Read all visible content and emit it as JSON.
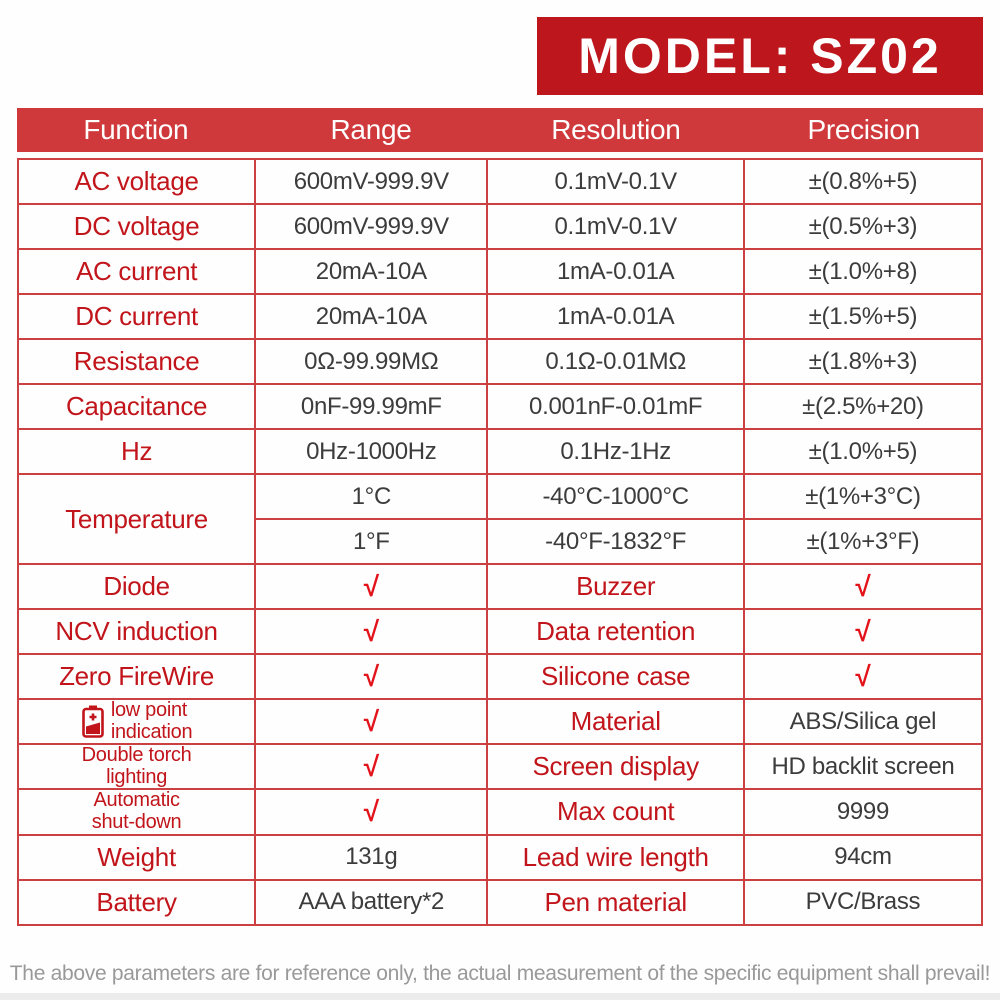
{
  "title": "MODEL: SZ02",
  "footer": "The above parameters are for reference only, the actual measurement of the specific equipment shall prevail!",
  "colors": {
    "title_bg": "#bd161d",
    "header_bg": "#cf393b",
    "border": "#cd4042",
    "label_red": "#c1151b",
    "value_dark": "#3c3c3c",
    "check_red": "#e3131b",
    "footer_gray": "#999999"
  },
  "table": {
    "headers": [
      "Function",
      "Range",
      "Resolution",
      "Precision"
    ],
    "rows": [
      {
        "cells": [
          {
            "kind": "label",
            "text": "AC voltage"
          },
          {
            "kind": "value",
            "text": "600mV-999.9V"
          },
          {
            "kind": "value",
            "text": "0.1mV-0.1V"
          },
          {
            "kind": "value",
            "text": "±(0.8%+5)"
          }
        ]
      },
      {
        "cells": [
          {
            "kind": "label",
            "text": "DC voltage"
          },
          {
            "kind": "value",
            "text": "600mV-999.9V"
          },
          {
            "kind": "value",
            "text": "0.1mV-0.1V"
          },
          {
            "kind": "value",
            "text": "±(0.5%+3)"
          }
        ]
      },
      {
        "cells": [
          {
            "kind": "label",
            "text": "AC current"
          },
          {
            "kind": "value",
            "text": "20mA-10A"
          },
          {
            "kind": "value",
            "text": "1mA-0.01A"
          },
          {
            "kind": "value",
            "text": "±(1.0%+8)"
          }
        ]
      },
      {
        "cells": [
          {
            "kind": "label",
            "text": "DC current"
          },
          {
            "kind": "value",
            "text": "20mA-10A"
          },
          {
            "kind": "value",
            "text": "1mA-0.01A"
          },
          {
            "kind": "value",
            "text": "±(1.5%+5)"
          }
        ]
      },
      {
        "cells": [
          {
            "kind": "label",
            "text": "Resistance"
          },
          {
            "kind": "value",
            "text": "0Ω-99.99MΩ"
          },
          {
            "kind": "value",
            "text": "0.1Ω-0.01MΩ"
          },
          {
            "kind": "value",
            "text": "±(1.8%+3)"
          }
        ]
      },
      {
        "cells": [
          {
            "kind": "label",
            "text": "Capacitance"
          },
          {
            "kind": "value",
            "text": "0nF-99.99mF"
          },
          {
            "kind": "value",
            "text": "0.001nF-0.01mF"
          },
          {
            "kind": "value",
            "text": "±(2.5%+20)"
          }
        ]
      },
      {
        "cells": [
          {
            "kind": "label",
            "text": "Hz"
          },
          {
            "kind": "value",
            "text": "0Hz-1000Hz"
          },
          {
            "kind": "value",
            "text": "0.1Hz-1Hz"
          },
          {
            "kind": "value",
            "text": "±(1.0%+5)"
          }
        ]
      },
      {
        "cells": [
          {
            "kind": "label",
            "text": "Temperature",
            "rowspan": 2
          },
          {
            "kind": "value",
            "text": "1°C"
          },
          {
            "kind": "value",
            "text": "-40°C-1000°C"
          },
          {
            "kind": "value",
            "text": "±(1%+3°C)"
          }
        ]
      },
      {
        "cells": [
          {
            "kind": "value",
            "text": "1°F"
          },
          {
            "kind": "value",
            "text": "-40°F-1832°F"
          },
          {
            "kind": "value",
            "text": "±(1%+3°F)"
          }
        ]
      },
      {
        "cells": [
          {
            "kind": "label",
            "text": "Diode"
          },
          {
            "kind": "check",
            "text": "√"
          },
          {
            "kind": "label",
            "text": "Buzzer"
          },
          {
            "kind": "check",
            "text": "√"
          }
        ]
      },
      {
        "cells": [
          {
            "kind": "label",
            "text": "NCV induction"
          },
          {
            "kind": "check",
            "text": "√"
          },
          {
            "kind": "label",
            "text": "Data retention"
          },
          {
            "kind": "check",
            "text": "√"
          }
        ]
      },
      {
        "cells": [
          {
            "kind": "label",
            "text": "Zero FireWire"
          },
          {
            "kind": "check",
            "text": "√"
          },
          {
            "kind": "label",
            "text": "Silicone case"
          },
          {
            "kind": "check",
            "text": "√"
          }
        ]
      },
      {
        "cells": [
          {
            "kind": "label",
            "lines": [
              "low point",
              "indication"
            ],
            "small": true,
            "icon": "battery-low-icon"
          },
          {
            "kind": "check",
            "text": "√"
          },
          {
            "kind": "label",
            "text": "Material"
          },
          {
            "kind": "value",
            "text": "ABS/Silica gel"
          }
        ]
      },
      {
        "cells": [
          {
            "kind": "label",
            "lines": [
              "Double torch",
              "lighting"
            ],
            "small": true
          },
          {
            "kind": "check",
            "text": "√"
          },
          {
            "kind": "label",
            "text": "Screen display"
          },
          {
            "kind": "value",
            "text": "HD backlit screen"
          }
        ]
      },
      {
        "cells": [
          {
            "kind": "label",
            "lines": [
              "Automatic",
              "shut-down"
            ],
            "small": true
          },
          {
            "kind": "check",
            "text": "√"
          },
          {
            "kind": "label",
            "text": "Max count"
          },
          {
            "kind": "value",
            "text": "9999"
          }
        ]
      },
      {
        "cells": [
          {
            "kind": "label",
            "text": "Weight"
          },
          {
            "kind": "value",
            "text": "131g"
          },
          {
            "kind": "label",
            "text": "Lead wire length"
          },
          {
            "kind": "value",
            "text": "94cm"
          }
        ]
      },
      {
        "cells": [
          {
            "kind": "label",
            "text": "Battery"
          },
          {
            "kind": "value",
            "text": "AAA battery*2"
          },
          {
            "kind": "label",
            "text": "Pen material"
          },
          {
            "kind": "value",
            "text": "PVC/Brass"
          }
        ]
      }
    ]
  }
}
